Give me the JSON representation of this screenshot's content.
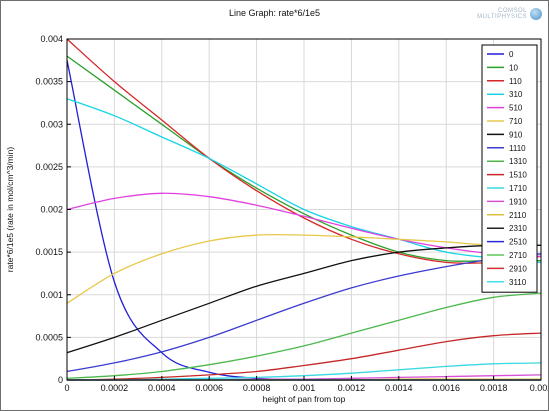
{
  "window": {
    "title": "Line Graph: rate*6/1e5",
    "logo_text": [
      "COMSOL",
      "MULTIPHYSICS"
    ],
    "logo_icon": "comsol-logo-icon"
  },
  "chart_data": {
    "type": "line",
    "title": "Line Graph: rate*6/1e5",
    "xlabel": "height of pan from top",
    "ylabel": "rate*6/1e5 (rate in mol/cm^3/min)",
    "xlim": [
      0,
      0.002
    ],
    "ylim": [
      0,
      0.004
    ],
    "x_ticks": [
      0,
      0.0002,
      0.0004,
      0.0006,
      0.0008,
      0.001,
      0.0012,
      0.0014,
      0.0016,
      0.0018,
      0.002
    ],
    "x_tick_labels": [
      "0",
      "0.0002",
      "0.0004",
      "0.0006",
      "0.0008",
      "0.001",
      "0.0012",
      "0.0014",
      "0.0016",
      "0.0018",
      "0.002"
    ],
    "y_ticks": [
      0,
      0.0005,
      0.001,
      0.0015,
      0.002,
      0.0025,
      0.003,
      0.0035,
      0.004
    ],
    "y_tick_labels": [
      "0",
      "0.0005",
      "0.001",
      "0.0015",
      "0.002",
      "0.0025",
      "0.003",
      "0.0035",
      "0.004"
    ],
    "grid": true,
    "legend_position": "top-right",
    "x": [
      0,
      0.0002,
      0.0004,
      0.0006,
      0.0008,
      0.001,
      0.0012,
      0.0014,
      0.0016,
      0.0018,
      0.002
    ],
    "series": [
      {
        "name": "0",
        "color": "#1f1fd6",
        "values": [
          0.00375,
          0.00115,
          0.00032,
          9e-05,
          2e-05,
          0.0,
          0.0,
          0.0,
          0.0,
          0.0,
          0.0
        ]
      },
      {
        "name": "10",
        "color": "#2ca02c",
        "values": [
          0.0038,
          0.0034,
          0.003,
          0.0026,
          0.00225,
          0.00195,
          0.0017,
          0.0015,
          0.0014,
          0.0014,
          0.0014
        ]
      },
      {
        "name": "110",
        "color": "#d62728",
        "values": [
          0.00402,
          0.0035,
          0.00305,
          0.0026,
          0.00222,
          0.0019,
          0.00165,
          0.00148,
          0.00138,
          0.00138,
          0.00145
        ]
      },
      {
        "name": "310",
        "color": "#17d4e6",
        "values": [
          0.0033,
          0.0031,
          0.00285,
          0.0026,
          0.0023,
          0.002,
          0.0018,
          0.00165,
          0.0015,
          0.00143,
          0.00138
        ]
      },
      {
        "name": "510",
        "color": "#e040e0",
        "values": [
          0.002,
          0.00213,
          0.00219,
          0.00215,
          0.00205,
          0.00192,
          0.00178,
          0.00165,
          0.00155,
          0.00148,
          0.00145
        ]
      },
      {
        "name": "710",
        "color": "#e6c84a",
        "values": [
          0.0009,
          0.00125,
          0.00148,
          0.00163,
          0.0017,
          0.0017,
          0.00168,
          0.00165,
          0.00162,
          0.00158,
          0.00158
        ]
      },
      {
        "name": "910",
        "color": "#111111",
        "values": [
          0.00032,
          0.0005,
          0.0007,
          0.0009,
          0.0011,
          0.00125,
          0.0014,
          0.0015,
          0.00155,
          0.00158,
          0.00158
        ]
      },
      {
        "name": "1110",
        "color": "#3b3bd0",
        "values": [
          0.0001,
          0.0002,
          0.00033,
          0.0005,
          0.0007,
          0.0009,
          0.00108,
          0.00122,
          0.00133,
          0.00142,
          0.00148
        ]
      },
      {
        "name": "1310",
        "color": "#4cb84c",
        "values": [
          2e-05,
          5e-05,
          0.0001,
          0.00018,
          0.00028,
          0.0004,
          0.00055,
          0.0007,
          0.00085,
          0.00097,
          0.00102
        ]
      },
      {
        "name": "1510",
        "color": "#c62828",
        "values": [
          0.0,
          1e-05,
          3e-05,
          6e-05,
          0.0001,
          0.00017,
          0.00025,
          0.00035,
          0.00045,
          0.00052,
          0.00055
        ]
      },
      {
        "name": "1710",
        "color": "#3ad8e0",
        "values": [
          0.0,
          0.0,
          1e-05,
          2e-05,
          3e-05,
          5e-05,
          8e-05,
          0.00012,
          0.00016,
          0.00019,
          0.0002
        ]
      },
      {
        "name": "1910",
        "color": "#d64fd6",
        "values": [
          0.0,
          0.0,
          0.0,
          0.0,
          1e-05,
          1e-05,
          2e-05,
          3e-05,
          4e-05,
          5e-05,
          6e-05
        ]
      },
      {
        "name": "2110",
        "color": "#e0c040",
        "values": [
          0.0,
          0.0,
          0.0,
          0.0,
          0.0,
          0.0,
          0.0,
          1e-05,
          1e-05,
          1e-05,
          1e-05
        ]
      },
      {
        "name": "2310",
        "color": "#222222",
        "values": [
          0.0,
          0.0,
          0.0,
          0.0,
          0.0,
          0.0,
          0.0,
          0.0,
          0.0,
          0.0,
          0.0
        ]
      },
      {
        "name": "2510",
        "color": "#2a2ad8",
        "values": [
          0.0,
          0.0,
          0.0,
          0.0,
          0.0,
          0.0,
          0.0,
          0.0,
          0.0,
          0.0,
          0.0
        ]
      },
      {
        "name": "2710",
        "color": "#5cc65c",
        "values": [
          0.0,
          0.0,
          0.0,
          0.0,
          0.0,
          0.0,
          0.0,
          0.0,
          0.0,
          0.0,
          0.0
        ]
      },
      {
        "name": "2910",
        "color": "#d43030",
        "values": [
          0.0,
          0.0,
          0.0,
          0.0,
          0.0,
          0.0,
          0.0,
          0.0,
          0.0,
          0.0,
          0.0
        ]
      },
      {
        "name": "3110",
        "color": "#40e0f0",
        "values": [
          0.0,
          0.0,
          0.0,
          0.0,
          0.0,
          0.0,
          0.0,
          0.0,
          0.0,
          0.0,
          0.0
        ]
      }
    ]
  }
}
